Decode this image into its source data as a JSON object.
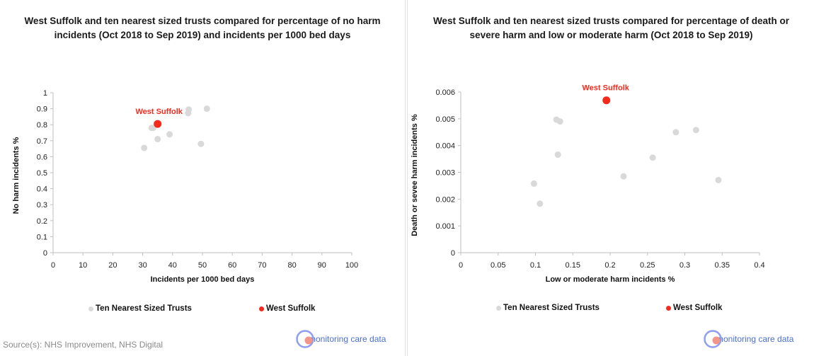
{
  "colors": {
    "trusts": "#d9d9d9",
    "west_suffolk": "#f42a1d",
    "brand_ring": "#8f9ff0",
    "brand_dot": "#f4958a",
    "brand_text": "#4a6fd0"
  },
  "source": "Source(s): NHS Improvement, NHS Digital",
  "brand": "monitoring care data",
  "chart_data": [
    {
      "type": "scatter",
      "title": "West Suffolk and ten nearest sized trusts compared for percentage of no harm incidents (Oct 2018 to Sep 2019) and incidents per 1000 bed days",
      "xlabel": "Incidents per 1000 bed days",
      "ylabel": "No harm incidents %",
      "xlim": [
        0,
        100
      ],
      "ylim": [
        0,
        1
      ],
      "xticks": [
        0,
        10,
        20,
        30,
        40,
        50,
        60,
        70,
        80,
        90,
        100
      ],
      "yticks": [
        0,
        0.1,
        0.2,
        0.3,
        0.4,
        0.5,
        0.6,
        0.7,
        0.8,
        0.9,
        1
      ],
      "xtick_labels": [
        "0",
        "10",
        "20",
        "30",
        "40",
        "50",
        "60",
        "70",
        "80",
        "90",
        "100"
      ],
      "ytick_labels": [
        "0",
        "0.1",
        "0.2",
        "0.3",
        "0.4",
        "0.5",
        "0.6",
        "0.7",
        "0.8",
        "0.9",
        "1"
      ],
      "grid": false,
      "legend": "bottom",
      "series": [
        {
          "name": "Ten Nearest Sized Trusts",
          "points": [
            [
              30.5,
              0.655
            ],
            [
              33,
              0.78
            ],
            [
              35,
              0.71
            ],
            [
              39,
              0.74
            ],
            [
              45.2,
              0.872
            ],
            [
              45.4,
              0.895
            ],
            [
              49.5,
              0.68
            ],
            [
              51.5,
              0.9
            ],
            [
              33.5,
              0.78
            ]
          ]
        },
        {
          "name": "West Suffolk",
          "points": [
            [
              35,
              0.805
            ]
          ],
          "annotation": "West Suffolk"
        }
      ]
    },
    {
      "type": "scatter",
      "title": "West Suffolk and ten nearest sized trusts compared for percentage of death or severe harm and low or moderate harm (Oct 2018 to Sep 2019)",
      "xlabel": "Low or moderate harm incidents %",
      "ylabel": "Death or sevee harm incidents %",
      "xlim": [
        0,
        0.4
      ],
      "ylim": [
        0,
        0.006
      ],
      "xticks": [
        0,
        0.05,
        0.1,
        0.15,
        0.2,
        0.25,
        0.3,
        0.35,
        0.4
      ],
      "yticks": [
        0,
        0.001,
        0.002,
        0.003,
        0.004,
        0.005,
        0.006
      ],
      "xtick_labels": [
        "0",
        "0.05",
        "0.1",
        "0.15",
        "0.2",
        "0.25",
        "0.3",
        "0.35",
        "0.4"
      ],
      "ytick_labels": [
        "0",
        "0.001",
        "0.002",
        "0.003",
        "0.004",
        "0.005",
        "0.006"
      ],
      "grid": false,
      "legend": "bottom",
      "series": [
        {
          "name": "Ten Nearest Sized Trusts",
          "points": [
            [
              0.098,
              0.00258
            ],
            [
              0.106,
              0.00183
            ],
            [
              0.128,
              0.00497
            ],
            [
              0.13,
              0.00366
            ],
            [
              0.133,
              0.0049
            ],
            [
              0.218,
              0.00285
            ],
            [
              0.257,
              0.00355
            ],
            [
              0.288,
              0.0045
            ],
            [
              0.315,
              0.00458
            ],
            [
              0.345,
              0.00271
            ]
          ]
        },
        {
          "name": "West Suffolk",
          "points": [
            [
              0.195,
              0.00569
            ]
          ],
          "annotation": "West Suffolk"
        }
      ]
    }
  ]
}
